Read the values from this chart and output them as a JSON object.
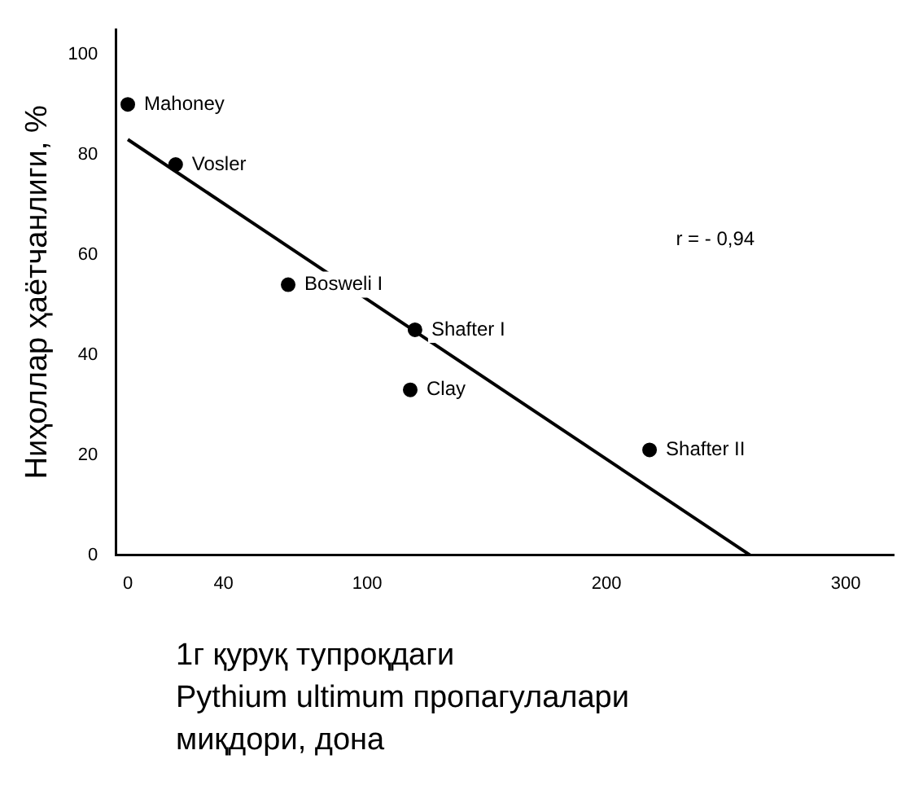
{
  "chart_data": {
    "type": "scatter",
    "xlabel": "1г қуруқ тупроқдаги\nPythium ultimum пропагулалари\nмиқдори, дона",
    "ylabel": "Ниҳоллар ҳаётчанлиги, %",
    "series": [
      {
        "type": "scatter",
        "color": "#000000",
        "marker": "circle",
        "x": [
          0,
          20,
          67,
          120,
          118,
          218
        ],
        "values": [
          90,
          78,
          54,
          45,
          33,
          21
        ]
      },
      {
        "type": "line",
        "color": "#000000",
        "marker": "none",
        "line_style": "solid",
        "x": [
          0,
          260
        ],
        "values": [
          83,
          0
        ]
      }
    ],
    "annotations": [
      {
        "text": "Mahoney",
        "x": 0,
        "y": 90
      },
      {
        "text": "Vosler",
        "x": 20,
        "y": 78
      },
      {
        "text": "Bosweli I",
        "x": 67,
        "y": 54
      },
      {
        "text": "Shafter I",
        "x": 120,
        "y": 45
      },
      {
        "text": "Clay",
        "x": 118,
        "y": 33
      },
      {
        "text": "Shafter II",
        "x": 218,
        "y": 21
      },
      "r = - 0,94"
    ],
    "xlim": [
      -5,
      320
    ],
    "xticks": [
      0,
      40,
      100,
      200,
      300
    ],
    "ylim": [
      0,
      105
    ],
    "yticks": [
      0,
      20,
      40,
      60,
      80,
      100
    ],
    "grid": false,
    "legend": false
  }
}
